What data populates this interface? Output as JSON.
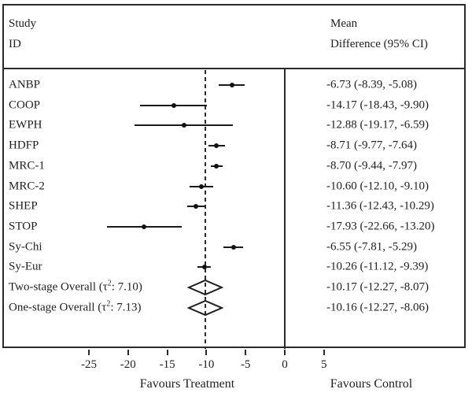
{
  "colors": {
    "ink": "#1e1e1e",
    "line": "#2b2b2b",
    "background": "#ffffff"
  },
  "chart_data": {
    "type": "forest",
    "title": "",
    "columns": {
      "left_line1": "Study",
      "left_line2": "ID",
      "right_line1": "Mean",
      "right_line2": "Difference (95% CI)"
    },
    "x_ticks": [
      {
        "value": -25,
        "label": "-25"
      },
      {
        "value": -20,
        "label": "-20"
      },
      {
        "value": -15,
        "label": "-15"
      },
      {
        "value": -10,
        "label": "-10"
      },
      {
        "value": -5,
        "label": "-5"
      },
      {
        "value": 0,
        "label": "0"
      },
      {
        "value": 5,
        "label": "5"
      }
    ],
    "axis_range": [
      -27.5,
      23
    ],
    "null_line_value": 0,
    "overall_dashed_line_value": -10.17,
    "axis_annotations": {
      "left": "Favours Treatment",
      "right": "Favours Control"
    },
    "studies": [
      {
        "id": "ANBP",
        "mean": -6.73,
        "ci_low": -8.39,
        "ci_high": -5.08,
        "label": "-6.73 (-8.39, -5.08)"
      },
      {
        "id": "COOP",
        "mean": -14.17,
        "ci_low": -18.43,
        "ci_high": -9.9,
        "label": "-14.17 (-18.43, -9.90)"
      },
      {
        "id": "EWPH",
        "mean": -12.88,
        "ci_low": -19.17,
        "ci_high": -6.59,
        "label": "-12.88 (-19.17, -6.59)"
      },
      {
        "id": "HDFP",
        "mean": -8.71,
        "ci_low": -9.77,
        "ci_high": -7.64,
        "label": "-8.71 (-9.77, -7.64)"
      },
      {
        "id": "MRC-1",
        "mean": -8.7,
        "ci_low": -9.44,
        "ci_high": -7.97,
        "label": "-8.70 (-9.44, -7.97)"
      },
      {
        "id": "MRC-2",
        "mean": -10.6,
        "ci_low": -12.1,
        "ci_high": -9.1,
        "label": "-10.60 (-12.10, -9.10)"
      },
      {
        "id": "SHEP",
        "mean": -11.36,
        "ci_low": -12.43,
        "ci_high": -10.29,
        "label": "-11.36 (-12.43, -10.29)"
      },
      {
        "id": "STOP",
        "mean": -17.93,
        "ci_low": -22.66,
        "ci_high": -13.2,
        "label": "-17.93 (-22.66, -13.20)"
      },
      {
        "id": "Sy-Chi",
        "mean": -6.55,
        "ci_low": -7.81,
        "ci_high": -5.29,
        "label": "-6.55 (-7.81, -5.29)"
      },
      {
        "id": "Sy-Eur",
        "mean": -10.26,
        "ci_low": -11.12,
        "ci_high": -9.39,
        "label": "-10.26 (-11.12, -9.39)"
      }
    ],
    "overalls": [
      {
        "id_prefix": "Two-stage Overall (τ",
        "id_sup": "2",
        "id_suffix": ": 7.10)",
        "mean": -10.17,
        "ci_low": -12.27,
        "ci_high": -8.07,
        "label": "-10.17 (-12.27, -8.07)"
      },
      {
        "id_prefix": "One-stage Overall (τ",
        "id_sup": "2",
        "id_suffix": ": 7.13)",
        "mean": -10.16,
        "ci_low": -12.27,
        "ci_high": -8.06,
        "label": "-10.16 (-12.27, -8.06)"
      }
    ]
  }
}
